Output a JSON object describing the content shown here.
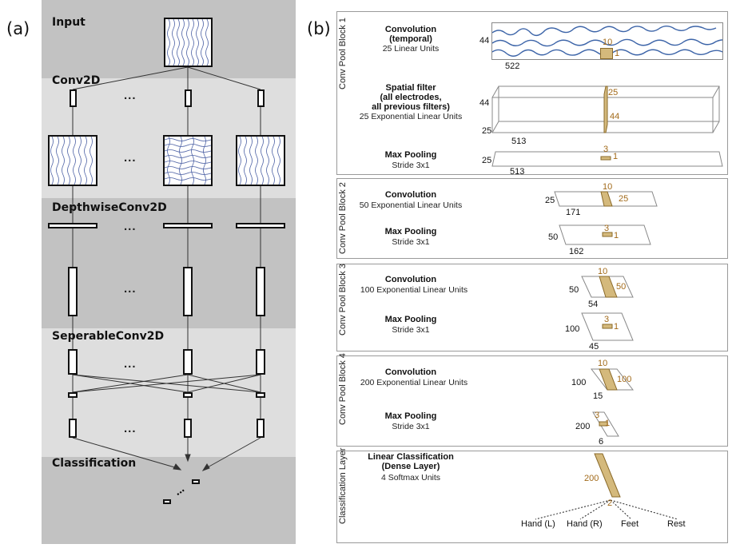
{
  "panels": {
    "a": "(a)",
    "b": "(b)"
  },
  "left": {
    "stages": {
      "input": "Input",
      "conv2d": "Conv2D",
      "depthwise": "DepthwiseConv2D",
      "separable": "SeperableConv2D",
      "classification": "Classification"
    },
    "ellipsis": "...",
    "colors": {
      "band_dark": "#c2c2c2",
      "band_light": "#dedede",
      "wave": "#4a5fa3"
    }
  },
  "right": {
    "blocks": {
      "b1": "Conv Pool Block 1",
      "b2": "Conv Pool Block 2",
      "b3": "Conv Pool Block 3",
      "b4": "Conv Pool Block 4",
      "cls": "Classification Layer"
    },
    "layers": {
      "conv_temporal": {
        "title": "Convolution\n(temporal)",
        "sub": "25 Linear Units"
      },
      "spatial": {
        "title": "Spatial filter\n(all electrodes,\nall previous filters)",
        "sub": "25 Exponential Linear Units"
      },
      "pool1": {
        "title": "Max Pooling",
        "sub": "Stride 3x1"
      },
      "conv2": {
        "title": "Convolution",
        "sub": "50 Exponential Linear Units"
      },
      "pool2": {
        "title": "Max Pooling",
        "sub": "Stride 3x1"
      },
      "conv3": {
        "title": "Convolution",
        "sub": "100 Exponential Linear  Units"
      },
      "pool3": {
        "title": "Max Pooling",
        "sub": "Stride 3x1"
      },
      "conv4": {
        "title": "Convolution",
        "sub": "200 Exponential Linear Units"
      },
      "pool4": {
        "title": "Max Pooling",
        "sub": "Stride 3x1"
      },
      "dense": {
        "title": "Linear Classification\n(Dense Layer)",
        "sub": "4 Softmax Units"
      }
    },
    "dims": {
      "b1_h": "44",
      "b1_w": "522",
      "b1_k": "10",
      "b1_k1": "1",
      "sp_h": "44",
      "sp_d": "25",
      "sp_w": "513",
      "sp_k25": "25",
      "sp_k44": "44",
      "p1_h": "25",
      "p1_w": "513",
      "p1_k3": "3",
      "p1_k1": "1",
      "c2_h": "25",
      "c2_w": "171",
      "c2_k10": "10",
      "c2_k25": "25",
      "p2_h": "50",
      "p2_w": "162",
      "p2_k3": "3",
      "p2_k1": "1",
      "c3_h": "50",
      "c3_w": "54",
      "c3_k10": "10",
      "c3_k50": "50",
      "p3_h": "100",
      "p3_w": "45",
      "p3_k3": "3",
      "p3_k1": "1",
      "c4_h": "100",
      "c4_w": "15",
      "c4_k10": "10",
      "c4_k100": "100",
      "p4_h": "200",
      "p4_w": "6",
      "p4_k3": "3",
      "p4_k1": "1",
      "d_200": "200",
      "d_2": "2"
    },
    "classes": [
      "Hand (L)",
      "Hand (R)",
      "Feet",
      "Rest"
    ],
    "colors": {
      "filter_fill": "#d4b97c",
      "filter_stroke": "#8a6a2a",
      "signal": "#3c64a8"
    }
  }
}
